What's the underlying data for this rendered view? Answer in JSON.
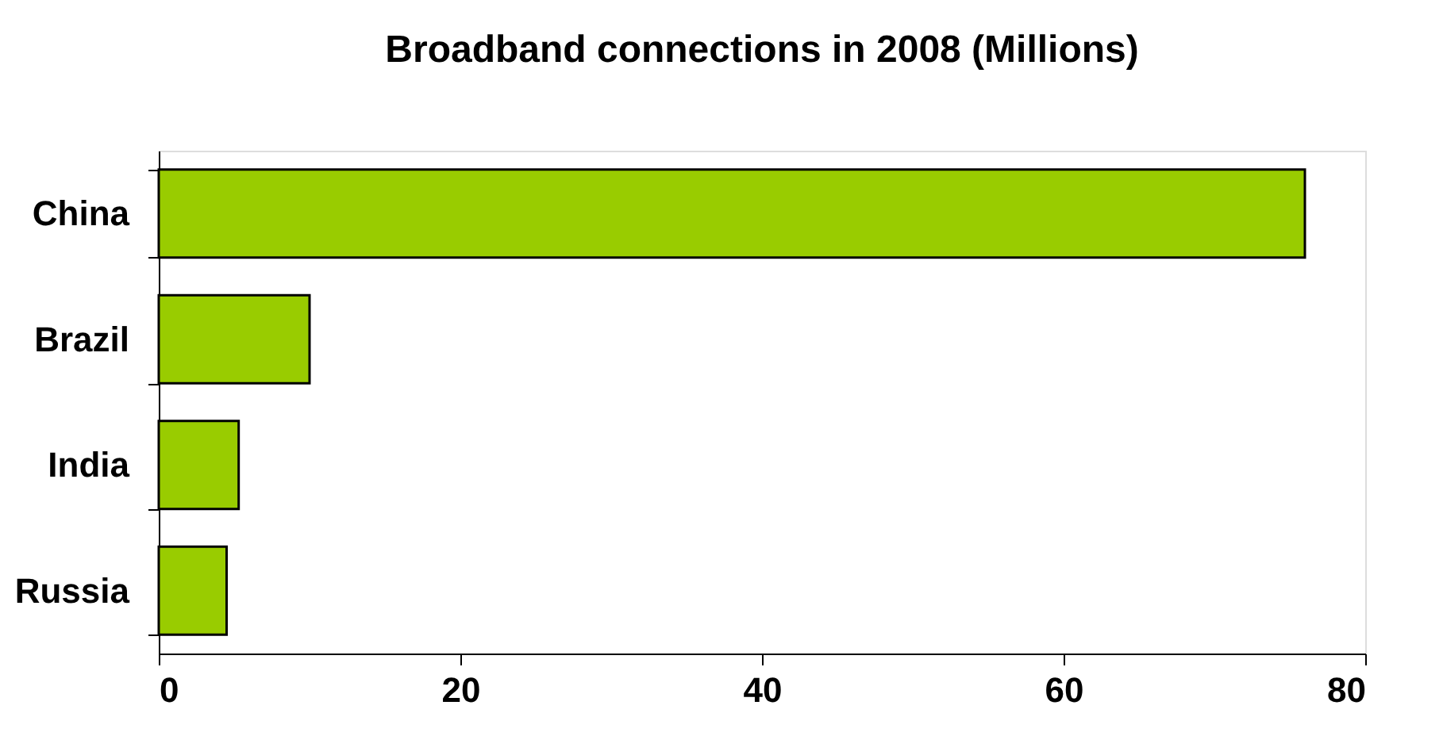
{
  "chart_data": {
    "type": "bar",
    "orientation": "horizontal",
    "title": "Broadband connections in 2008 (Millions)",
    "categories": [
      "China",
      "Brazil",
      "India",
      "Russia"
    ],
    "values": [
      76,
      10,
      5.3,
      4.5
    ],
    "color": "#99cc00",
    "xlim": [
      0,
      80
    ],
    "xticks": [
      0,
      20,
      40,
      60,
      80
    ],
    "grid": false
  }
}
